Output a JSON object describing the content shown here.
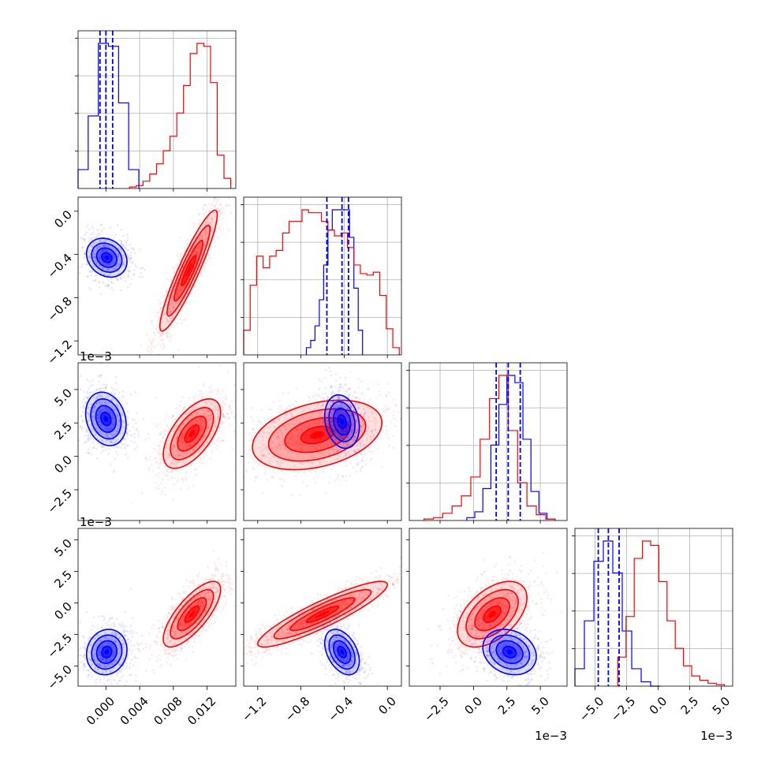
{
  "chart_data": {
    "type": "corner",
    "title": "",
    "n_params": 4,
    "series": [
      {
        "color": "#0000ff",
        "quantile_lines": "dashed"
      },
      {
        "color": "#ff0000"
      }
    ],
    "grid": true,
    "axes": [
      {
        "xlim": [
          -0.0033,
          0.0154
        ],
        "xticks": [
          "0.000",
          "0.004",
          "0.008",
          "0.012"
        ],
        "xtick_values": [
          0.0,
          0.004,
          0.008,
          0.012
        ],
        "multiplier": ""
      },
      {
        "lim": [
          -1.33,
          0.13
        ],
        "ticks": [
          "-1.2",
          "-0.8",
          "-0.4",
          "0.0"
        ],
        "tick_values": [
          -1.2,
          -0.8,
          -0.4,
          0.0
        ],
        "multiplier": "1e−3"
      },
      {
        "lim": [
          -4.8,
          7.0
        ],
        "ticks": [
          "-2.5",
          "0.0",
          "2.5",
          "5.0"
        ],
        "tick_values": [
          -2.5,
          0.0,
          2.5,
          5.0
        ],
        "multiplier": "1e−3"
      },
      {
        "lim": [
          -6.6,
          5.9
        ],
        "ticks": [
          "-5.0",
          "-2.5",
          "0.0",
          "2.5",
          "5.0"
        ],
        "tick_values": [
          -5.0,
          -2.5,
          0.0,
          2.5,
          5.0
        ],
        "multiplier": "1e−3"
      }
    ],
    "marginals": [
      {
        "param": 0,
        "blue": {
          "edges": [
            -0.0033,
            -0.0021,
            -0.0009,
            0.0003,
            0.0015,
            0.0027,
            0.0039
          ],
          "counts": [
            0.13,
            0.5,
            1.0,
            0.98,
            0.59,
            0.13,
            0.0
          ],
          "quantiles": [
            -0.0007,
            0.0,
            0.0008
          ]
        },
        "red": {
          "edges": [
            0.0028,
            0.0036,
            0.0044,
            0.0052,
            0.006,
            0.0068,
            0.0076,
            0.0084,
            0.0092,
            0.01,
            0.0108,
            0.0116,
            0.0124,
            0.0132,
            0.014,
            0.0148
          ],
          "counts": [
            0.01,
            0.02,
            0.05,
            0.1,
            0.17,
            0.26,
            0.36,
            0.52,
            0.71,
            0.93,
            1.0,
            0.98,
            0.73,
            0.23,
            0.07
          ]
        }
      },
      {
        "param": 1,
        "blue": {
          "edges": [
            -0.75,
            -0.71,
            -0.67,
            -0.63,
            -0.59,
            -0.55,
            -0.51,
            -0.47,
            -0.43,
            -0.39,
            -0.35,
            -0.31,
            -0.27,
            -0.23
          ],
          "counts": [
            0.05,
            0.1,
            0.2,
            0.38,
            0.62,
            0.86,
            1.0,
            1.0,
            1.0,
            1.0,
            0.81,
            0.46,
            0.17
          ],
          "quantiles": [
            -0.56,
            -0.42,
            -0.36
          ]
        },
        "red": {
          "edges": [
            -1.33,
            -1.27,
            -1.21,
            -1.15,
            -1.09,
            -1.03,
            -0.97,
            -0.91,
            -0.85,
            -0.79,
            -0.73,
            -0.67,
            -0.61,
            -0.55,
            -0.49,
            -0.43,
            -0.37,
            -0.31,
            -0.25,
            -0.19,
            -0.13,
            -0.07,
            -0.01,
            0.05,
            0.11
          ],
          "counts": [
            0.17,
            0.48,
            0.68,
            0.6,
            0.68,
            0.72,
            0.84,
            0.92,
            0.92,
            1.0,
            0.98,
            0.98,
            0.92,
            0.86,
            0.82,
            0.84,
            0.74,
            0.62,
            0.56,
            0.55,
            0.57,
            0.41,
            0.18,
            0.05
          ]
        }
      },
      {
        "param": 2,
        "blue": {
          "edges": [
            -0.5,
            0.1,
            0.7,
            1.3,
            1.9,
            2.5,
            3.1,
            3.7,
            4.3,
            4.9,
            5.5,
            6.1
          ],
          "counts": [
            0.02,
            0.06,
            0.22,
            0.52,
            0.8,
            1.0,
            0.95,
            0.56,
            0.2,
            0.05,
            0.01
          ],
          "quantiles": [
            1.7,
            2.6,
            3.5
          ]
        },
        "red": {
          "edges": [
            -3.7,
            -3.0,
            -2.3,
            -1.6,
            -0.9,
            -0.2,
            0.5,
            1.2,
            1.9,
            2.6,
            3.3,
            4.0,
            4.7,
            5.4,
            6.1
          ],
          "counts": [
            0.01,
            0.02,
            0.05,
            0.1,
            0.17,
            0.3,
            0.56,
            0.84,
            1.0,
            0.62,
            0.26,
            0.1,
            0.04,
            0.01
          ]
        }
      },
      {
        "param": 3,
        "blue": {
          "edges": [
            -6.6,
            -5.85,
            -5.1,
            -4.35,
            -3.6,
            -2.85,
            -2.1,
            -1.35,
            -0.6,
            0.15
          ],
          "counts": [
            0.12,
            0.45,
            0.86,
            1.0,
            0.78,
            0.38,
            0.12,
            0.03,
            0.0
          ],
          "quantiles": [
            -4.75,
            -3.95,
            -3.1
          ]
        },
        "red": {
          "edges": [
            -3.2,
            -2.55,
            -1.9,
            -1.25,
            -0.6,
            0.05,
            0.7,
            1.35,
            2.0,
            2.65,
            3.3,
            3.95,
            4.6,
            5.25
          ],
          "counts": [
            0.2,
            0.48,
            0.88,
            1.0,
            0.97,
            0.72,
            0.45,
            0.26,
            0.14,
            0.07,
            0.04,
            0.02,
            0.01
          ]
        }
      }
    ],
    "joints": [
      {
        "x_param": 0,
        "y_param": 1,
        "blue": {
          "mean": [
            0.0001,
            -0.43
          ],
          "sd": [
            0.0012,
            0.09
          ],
          "rho": -0.2
        },
        "red": {
          "mean": [
            0.0098,
            -0.55
          ],
          "sd": [
            0.0017,
            0.28
          ],
          "rho": 0.92
        }
      },
      {
        "x_param": 0,
        "y_param": 2,
        "blue": {
          "mean": [
            0.0,
            2.8
          ],
          "sd": [
            0.0012,
            1.0
          ],
          "rho": -0.2
        },
        "red": {
          "mean": [
            0.0102,
            1.7
          ],
          "sd": [
            0.0017,
            1.3
          ],
          "rho": 0.6
        }
      },
      {
        "x_param": 1,
        "y_param": 2,
        "blue": {
          "mean": [
            -0.42,
            2.6
          ],
          "sd": [
            0.08,
            1.0
          ],
          "rho": -0.2
        },
        "red": {
          "mean": [
            -0.65,
            1.6
          ],
          "sd": [
            0.3,
            1.3
          ],
          "rho": 0.35
        }
      },
      {
        "x_param": 0,
        "y_param": 3,
        "blue": {
          "mean": [
            0.0001,
            -3.9
          ],
          "sd": [
            0.0012,
            0.9
          ],
          "rho": 0.1
        },
        "red": {
          "mean": [
            0.0102,
            -0.9
          ],
          "sd": [
            0.0017,
            1.3
          ],
          "rho": 0.75
        }
      },
      {
        "x_param": 1,
        "y_param": 3,
        "blue": {
          "mean": [
            -0.42,
            -3.9
          ],
          "sd": [
            0.08,
            0.9
          ],
          "rho": -0.4
        },
        "red": {
          "mean": [
            -0.6,
            -0.9
          ],
          "sd": [
            0.3,
            1.3
          ],
          "rho": 0.9
        }
      },
      {
        "x_param": 2,
        "y_param": 3,
        "blue": {
          "mean": [
            2.7,
            -3.9
          ],
          "sd": [
            1.0,
            0.9
          ],
          "rho": -0.2
        },
        "red": {
          "mean": [
            1.4,
            -0.9
          ],
          "sd": [
            1.3,
            1.3
          ],
          "rho": 0.5
        }
      }
    ]
  }
}
